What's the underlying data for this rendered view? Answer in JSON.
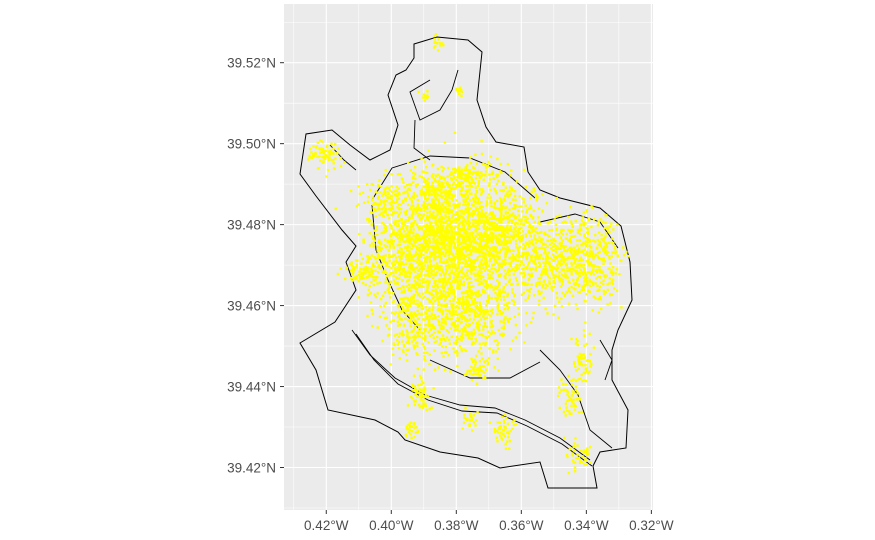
{
  "chart_data": {
    "type": "scatter",
    "title": "",
    "xlabel": "",
    "ylabel": "",
    "x_ticks": [
      -0.42,
      -0.4,
      -0.38,
      -0.36,
      -0.34,
      -0.32
    ],
    "x_tick_labels": [
      "0.42°W",
      "0.40°W",
      "0.38°W",
      "0.36°W",
      "0.34°W",
      "0.32°W"
    ],
    "y_ticks": [
      39.42,
      39.44,
      39.46,
      39.48,
      39.5,
      39.52
    ],
    "y_tick_labels": [
      "39.42°N",
      "39.44°N",
      "39.46°N",
      "39.48°N",
      "39.50°N",
      "39.52°N"
    ],
    "xlim": [
      -0.433,
      -0.3195
    ],
    "ylim": [
      39.4095,
      39.5345
    ],
    "grid": true,
    "legend": "none",
    "colors": {
      "panel_background": "#ebebeb",
      "grid": "#ffffff",
      "boundary": "#000000",
      "points": "#ffff00",
      "tick_text": "#4d4d4d",
      "tick_mark": "#333333"
    }
  }
}
